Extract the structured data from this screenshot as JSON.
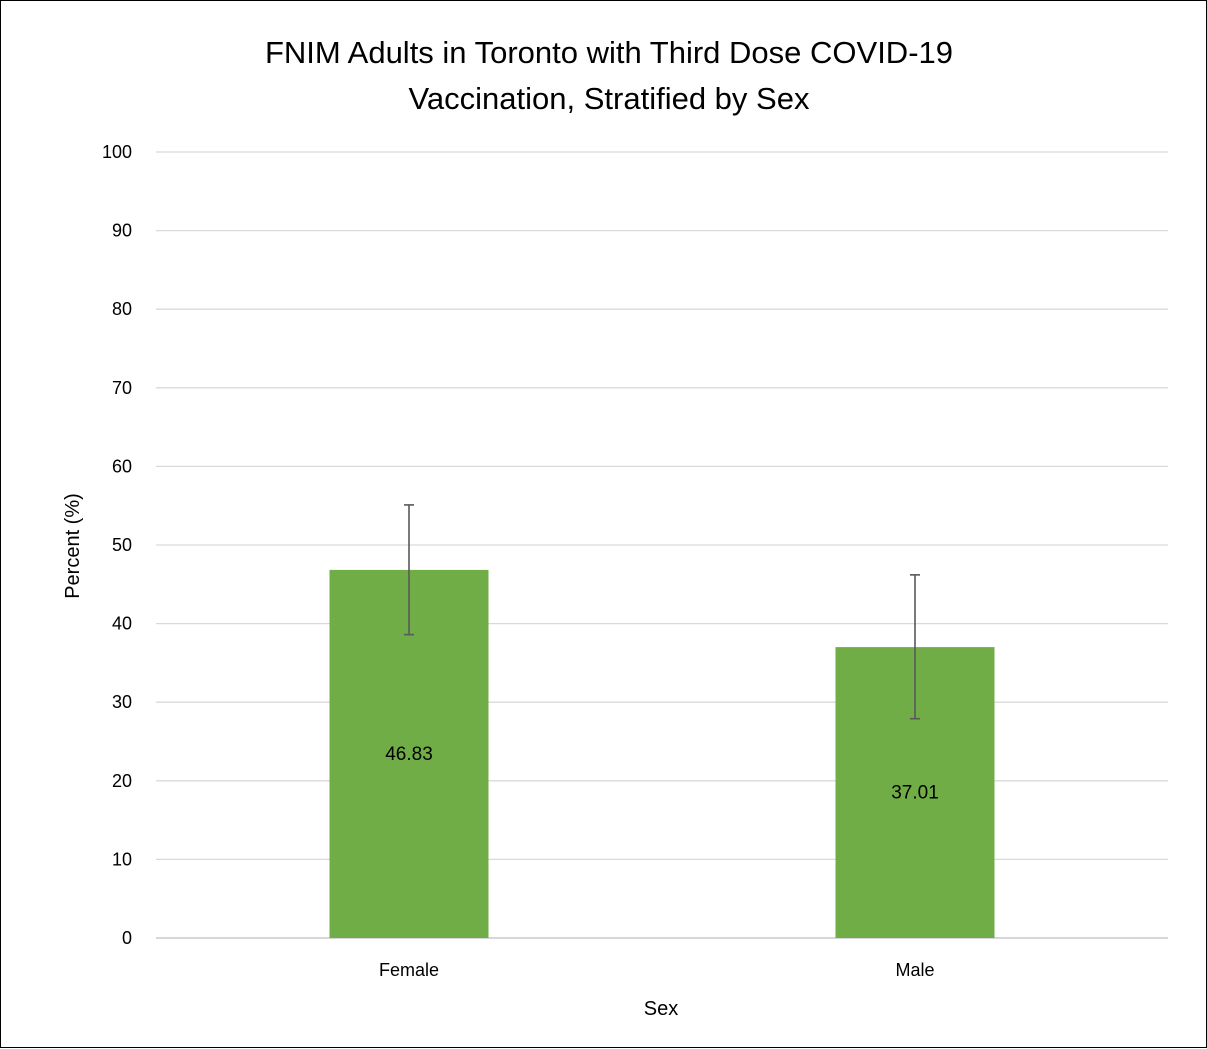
{
  "chart_data": {
    "type": "bar",
    "title_lines": [
      "FNIM Adults in Toronto with Third Dose COVID-19",
      "Vaccination, Stratified by Sex"
    ],
    "xlabel": "Sex",
    "ylabel": "Percent (%)",
    "categories": [
      "Female",
      "Male"
    ],
    "values": [
      46.83,
      37.01
    ],
    "data_labels": [
      "46.83",
      "37.01"
    ],
    "error_bars": [
      {
        "low": 38.6,
        "high": 55.1
      },
      {
        "low": 27.9,
        "high": 46.2
      }
    ],
    "ylim": [
      0,
      100
    ],
    "yticks": [
      0,
      10,
      20,
      30,
      40,
      50,
      60,
      70,
      80,
      90,
      100
    ],
    "grid": true,
    "legend": "none",
    "colors": {
      "bar": "#70ad47",
      "grid": "#d9d9d9",
      "axis": "#bfbfbf",
      "error_bar": "#595959"
    }
  }
}
